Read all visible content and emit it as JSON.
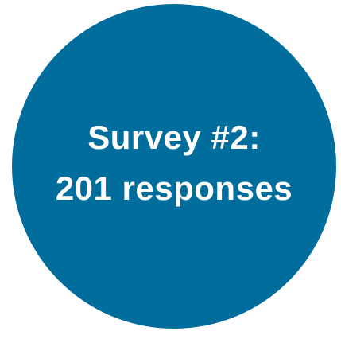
{
  "badge": {
    "line1": "Survey #2:",
    "line2": "201 responses",
    "background_color": "#006d9d",
    "text_color": "#ffffff"
  }
}
